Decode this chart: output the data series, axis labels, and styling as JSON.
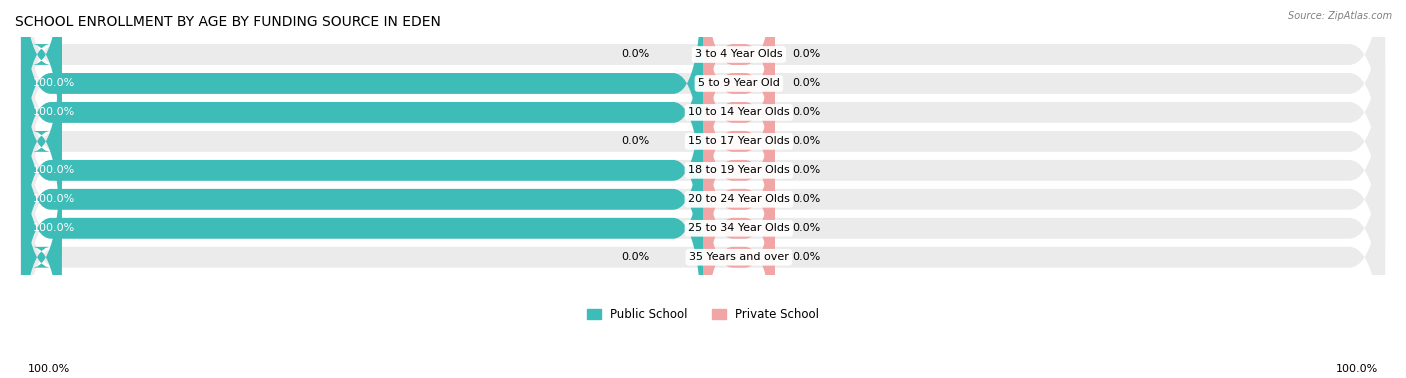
{
  "title": "SCHOOL ENROLLMENT BY AGE BY FUNDING SOURCE IN EDEN",
  "source": "Source: ZipAtlas.com",
  "categories": [
    "3 to 4 Year Olds",
    "5 to 9 Year Old",
    "10 to 14 Year Olds",
    "15 to 17 Year Olds",
    "18 to 19 Year Olds",
    "20 to 24 Year Olds",
    "25 to 34 Year Olds",
    "35 Years and over"
  ],
  "public_values": [
    0.0,
    100.0,
    100.0,
    0.0,
    100.0,
    100.0,
    100.0,
    0.0
  ],
  "private_values": [
    0.0,
    0.0,
    0.0,
    0.0,
    0.0,
    0.0,
    0.0,
    0.0
  ],
  "public_color": "#3DBCB8",
  "private_color": "#F2A5A5",
  "row_bg_color": "#EBEBEB",
  "title_fontsize": 10,
  "bar_label_fontsize": 8,
  "value_label_fontsize": 8,
  "legend_fontsize": 8.5,
  "axis_label_fontsize": 8,
  "xlim_left": -115,
  "xlim_right": 115,
  "stub_size": 6,
  "private_stub_size": 12
}
